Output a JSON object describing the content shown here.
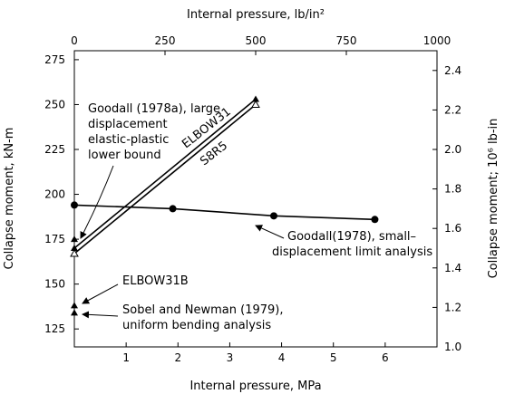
{
  "chart_data": {
    "type": "line",
    "xlabel": "Internal pressure, MPa",
    "x2label": "Internal pressure, lb/in²",
    "ylabel": "Collapse moment, kN-m",
    "y2label": "Collapse moment; 10⁶ lb-in",
    "xlim": [
      0,
      7
    ],
    "ylim": [
      115,
      280
    ],
    "x2lim": [
      0,
      1000
    ],
    "y2lim": [
      1.0,
      2.5
    ],
    "x_ticks": [
      "1",
      "2",
      "3",
      "4",
      "5",
      "6"
    ],
    "x2_ticks": [
      "0",
      "250",
      "500",
      "750",
      "1000"
    ],
    "y_ticks": [
      "125",
      "150",
      "175",
      "200",
      "225",
      "250",
      "275"
    ],
    "y2_ticks": [
      "1.0",
      "1.2",
      "1.4",
      "1.6",
      "1.8",
      "2.0",
      "2.2",
      "2.4"
    ],
    "series": [
      {
        "name": "ELBOW31",
        "marker": "filled-triangle",
        "x": [
          0,
          3.5
        ],
        "y": [
          170,
          253
        ]
      },
      {
        "name": "S8R5",
        "marker": "open-triangle",
        "x": [
          0,
          3.5
        ],
        "y": [
          167,
          250
        ]
      },
      {
        "name": "Goodall(1978), small-displacement limit analysis",
        "marker": "filled-circle",
        "x": [
          0,
          1.9,
          3.85,
          5.8
        ],
        "y": [
          194,
          192,
          188,
          186
        ]
      },
      {
        "name": "Goodall (1978a), large displacement elastic-plastic lower bound",
        "marker": "filled-triangle",
        "x": [
          0
        ],
        "y": [
          175
        ]
      },
      {
        "name": "ELBOW31B",
        "marker": "filled-triangle",
        "x": [
          0
        ],
        "y": [
          138
        ]
      },
      {
        "name": "Sobel and Newman (1979), uniform bending analysis",
        "marker": "filled-triangle",
        "x": [
          0
        ],
        "y": [
          134
        ]
      }
    ],
    "annotations": {
      "elbow31": "ELBOW31",
      "s8r5": "S8R5",
      "goodall_lb": [
        "Goodall (1978a), large",
        "displacement",
        "elastic-plastic",
        "lower bound"
      ],
      "goodall_limit": [
        "Goodall(1978), small–",
        "displacement limit analysis"
      ],
      "elbow31b": "ELBOW31B",
      "sobel": [
        "Sobel and Newman (1979),",
        "uniform bending analysis"
      ]
    }
  }
}
